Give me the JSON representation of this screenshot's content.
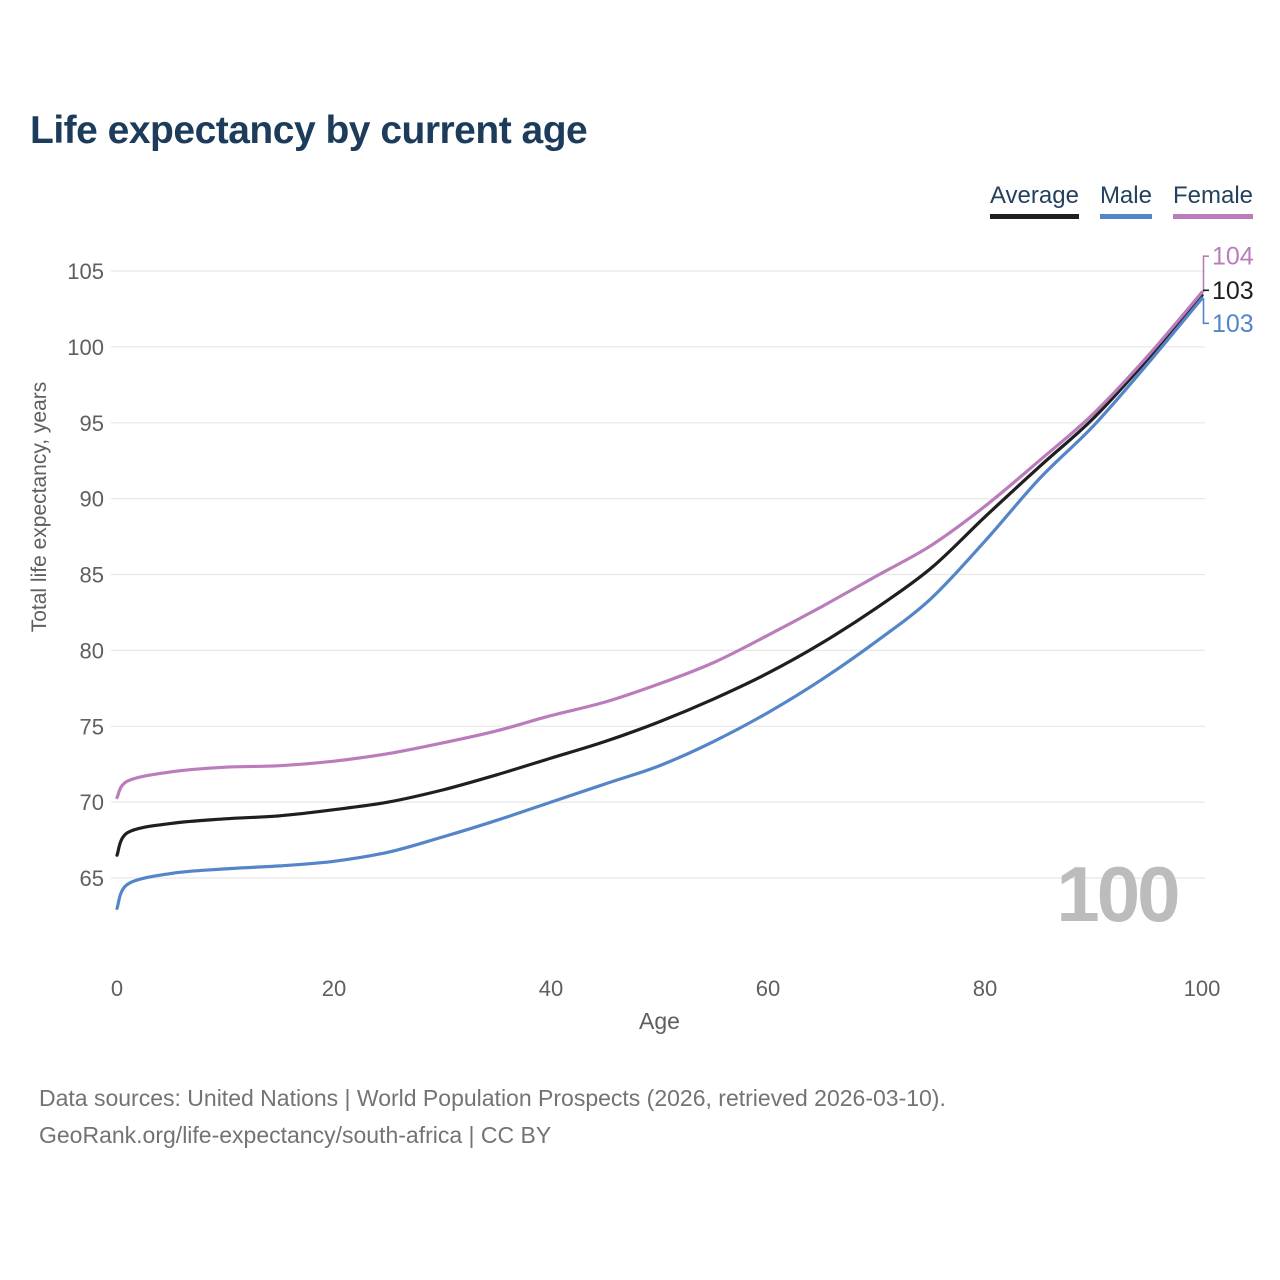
{
  "title": "Life expectancy by current age",
  "legend": [
    {
      "label": "Average",
      "color": "#1f1f1f"
    },
    {
      "label": "Male",
      "color": "#5585c9"
    },
    {
      "label": "Female",
      "color": "#bb7cbc"
    }
  ],
  "chart_data": {
    "type": "line",
    "title": "Life expectancy by current age",
    "xlabel": "Age",
    "ylabel": "Total life expectancy, years",
    "xlim": [
      0,
      100
    ],
    "ylim": [
      65,
      105
    ],
    "x_ticks": [
      0,
      20,
      40,
      60,
      80,
      100
    ],
    "y_ticks": [
      65,
      70,
      75,
      80,
      85,
      90,
      95,
      100,
      105
    ],
    "grid": "horizontal",
    "legend_position": "top-right",
    "watermark": "100",
    "x": [
      0,
      1,
      5,
      10,
      15,
      20,
      25,
      30,
      35,
      40,
      45,
      50,
      55,
      60,
      65,
      70,
      75,
      80,
      85,
      90,
      95,
      100
    ],
    "series": [
      {
        "name": "Average",
        "color": "#1f1f1f",
        "values": [
          66.5,
          68.0,
          68.6,
          68.9,
          69.1,
          69.5,
          70.0,
          70.8,
          71.8,
          72.9,
          74.0,
          75.3,
          76.8,
          78.5,
          80.5,
          82.8,
          85.4,
          88.8,
          92.1,
          95.3,
          99.2,
          103.4
        ]
      },
      {
        "name": "Male",
        "color": "#5585c9",
        "values": [
          63.0,
          64.6,
          65.3,
          65.6,
          65.8,
          66.1,
          66.7,
          67.7,
          68.8,
          70.0,
          71.2,
          72.4,
          74.0,
          75.9,
          78.1,
          80.6,
          83.4,
          87.2,
          91.3,
          94.8,
          98.9,
          103.2
        ]
      },
      {
        "name": "Female",
        "color": "#bb7cbc",
        "values": [
          70.3,
          71.4,
          72.0,
          72.3,
          72.4,
          72.7,
          73.2,
          73.9,
          74.7,
          75.7,
          76.6,
          77.8,
          79.2,
          81.0,
          82.9,
          84.9,
          86.9,
          89.5,
          92.5,
          95.6,
          99.4,
          103.6
        ]
      }
    ],
    "end_labels": [
      {
        "series": "Female",
        "text": "104"
      },
      {
        "series": "Average",
        "text": "103"
      },
      {
        "series": "Male",
        "text": "103"
      }
    ]
  },
  "footer": {
    "line1": "Data sources: United Nations | World Population Prospects (2026, retrieved 2026-03-10).",
    "line2": "GeoRank.org/life-expectancy/south-africa | CC BY"
  }
}
